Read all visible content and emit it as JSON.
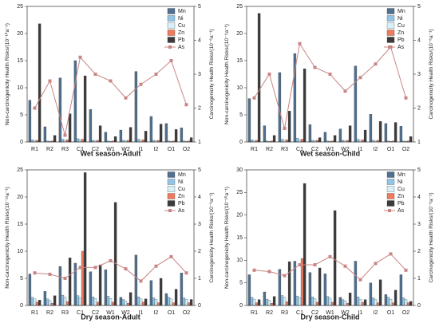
{
  "chart_data": [
    {
      "type": "bar",
      "title": "Wet season-Adult",
      "y_label": "Non-carcinogenicity Health Risks/(10⁻¹⁰a⁻¹)",
      "y2_label": "Carcinogenicity Health Risks/(10⁻⁶a⁻¹)",
      "categories": [
        "R1",
        "R2",
        "R3",
        "C1",
        "C2",
        "W1",
        "W2",
        "I1",
        "I2",
        "O1",
        "O2"
      ],
      "ylim": [
        0,
        25
      ],
      "yticks": [
        0,
        5,
        10,
        15,
        20,
        25
      ],
      "y2lim": [
        1,
        5
      ],
      "y2ticks": [
        1,
        2,
        3,
        4,
        5
      ],
      "series": [
        {
          "name": "Mn",
          "color": "#4f7091",
          "values": [
            7.7,
            2.8,
            11.8,
            15,
            6,
            1.8,
            2.2,
            13,
            4.7,
            3.4,
            2.6
          ]
        },
        {
          "name": "Ni",
          "color": "#92c6e6",
          "values": [
            0.4,
            0.2,
            0.5,
            0.6,
            0.3,
            0.2,
            0.3,
            0.5,
            0.3,
            0.2,
            0.2
          ]
        },
        {
          "name": "Cu",
          "color": "#d8f0f8",
          "values": [
            0.2,
            0.1,
            0.3,
            0.4,
            0.2,
            0.1,
            0.2,
            0.3,
            0.2,
            0.1,
            0.1
          ]
        },
        {
          "name": "Zn",
          "color": "#ef7b5f",
          "values": [
            0.3,
            0.2,
            0.4,
            0.5,
            0.3,
            0.2,
            0.3,
            0.4,
            0.3,
            0.2,
            0.2
          ]
        },
        {
          "name": "Pb",
          "color": "#3b3b3b",
          "values": [
            21.8,
            1.2,
            5.2,
            12.2,
            3,
            1,
            2.7,
            2,
            3.3,
            2.3,
            0.8
          ]
        },
        {
          "name": "As",
          "color": "#c98585",
          "axis": "y2",
          "values": [
            2.0,
            2.8,
            1.2,
            3.5,
            3.0,
            2.8,
            2.3,
            2.7,
            3.0,
            3.4,
            2.1
          ]
        }
      ]
    },
    {
      "type": "bar",
      "title": "Wet season-Child",
      "y_label": "Non-carcinogenicity Health Risks/(10⁻⁹a⁻¹)",
      "y2_label": "Carcinogenicity Health Risks/(10⁻⁶a⁻¹)",
      "categories": [
        "R1",
        "R2",
        "R3",
        "C1",
        "C2",
        "W1",
        "W2",
        "I1",
        "I2",
        "O1",
        "O2"
      ],
      "ylim": [
        0,
        25
      ],
      "yticks": [
        0,
        5,
        10,
        15,
        20,
        25
      ],
      "y2lim": [
        1,
        5
      ],
      "y2ticks": [
        1,
        2,
        3,
        4,
        5
      ],
      "series": [
        {
          "name": "Mn",
          "color": "#4f7091",
          "values": [
            8,
            3,
            12.8,
            16.3,
            3.2,
            1.8,
            2.4,
            14,
            5.1,
            3.4,
            2.9
          ]
        },
        {
          "name": "Ni",
          "color": "#92c6e6",
          "values": [
            0.4,
            0.2,
            0.5,
            0.7,
            0.3,
            0.2,
            0.3,
            0.5,
            0.3,
            0.2,
            0.2
          ]
        },
        {
          "name": "Cu",
          "color": "#d8f0f8",
          "values": [
            0.2,
            0.1,
            0.3,
            0.4,
            0.2,
            0.1,
            0.2,
            0.3,
            0.2,
            0.1,
            0.1
          ]
        },
        {
          "name": "Zn",
          "color": "#ef7b5f",
          "values": [
            0.3,
            0.2,
            0.4,
            0.5,
            0.3,
            0.2,
            0.3,
            0.4,
            0.3,
            0.2,
            0.2
          ]
        },
        {
          "name": "Pb",
          "color": "#3b3b3b",
          "values": [
            23.7,
            1.2,
            5.7,
            13.5,
            0.8,
            1.2,
            3,
            2.2,
            3.8,
            3.6,
            1
          ]
        },
        {
          "name": "As",
          "color": "#c98585",
          "axis": "y2",
          "values": [
            2.3,
            3.0,
            1.4,
            3.9,
            3.2,
            3.0,
            2.5,
            2.9,
            3.3,
            3.8,
            2.3
          ]
        }
      ]
    },
    {
      "type": "bar",
      "title": "Dry season-Adult",
      "y_label": "Non-carcinogenicity Health Risks/(10⁻¹¹a⁻¹)",
      "y2_label": "Carcinogenicity Health Risks/(10⁻⁶a⁻¹)",
      "categories": [
        "R1",
        "R2",
        "R3",
        "C1",
        "C2",
        "W1",
        "W2",
        "I1",
        "I2",
        "O1",
        "O2"
      ],
      "ylim": [
        0,
        25
      ],
      "yticks": [
        0,
        5,
        10,
        15,
        20,
        25
      ],
      "y2lim": [
        0,
        5
      ],
      "y2ticks": [
        0,
        1,
        2,
        3,
        4,
        5
      ],
      "series": [
        {
          "name": "Mn",
          "color": "#4f7091",
          "values": [
            5.8,
            2.6,
            7.2,
            7.8,
            6.2,
            6.6,
            1.5,
            9.3,
            4.6,
            2.2,
            6
          ]
        },
        {
          "name": "Ni",
          "color": "#92c6e6",
          "values": [
            1.5,
            1.2,
            1.9,
            1.8,
            1.6,
            1.7,
            1.1,
            1.6,
            1.4,
            1.5,
            1.4
          ]
        },
        {
          "name": "Cu",
          "color": "#d8f0f8",
          "values": [
            1.2,
            0.9,
            1.5,
            1.4,
            1.3,
            1.3,
            0.8,
            1.2,
            1.1,
            1.2,
            1.1
          ]
        },
        {
          "name": "Zn",
          "color": "#ef7b5f",
          "values": [
            0.6,
            0.4,
            0.7,
            10,
            0.6,
            0.6,
            0.4,
            0.6,
            0.5,
            0.5,
            0.5
          ]
        },
        {
          "name": "Pb",
          "color": "#3b3b3b",
          "values": [
            1,
            1.8,
            8.8,
            24.5,
            7.5,
            19,
            2.4,
            1.2,
            5,
            3,
            1.1
          ]
        },
        {
          "name": "As",
          "color": "#c98585",
          "axis": "y2",
          "values": [
            1.2,
            1.15,
            1.0,
            1.4,
            1.4,
            1.65,
            1.35,
            0.9,
            1.45,
            1.8,
            1.2
          ]
        }
      ]
    },
    {
      "type": "bar",
      "title": "Dry season-Child",
      "y_label": "Non-carcinogenicity Health Risks/(10⁻¹⁰a⁻¹)",
      "y2_label": "Carcinogenicity Health Risks/(10⁻⁶a⁻¹)",
      "categories": [
        "R1",
        "R2",
        "R3",
        "C1",
        "C2",
        "W1",
        "W2",
        "I1",
        "I2",
        "O1",
        "O2"
      ],
      "ylim": [
        0,
        30
      ],
      "yticks": [
        0,
        5,
        10,
        15,
        20,
        25,
        30
      ],
      "y2lim": [
        0,
        5
      ],
      "y2ticks": [
        0,
        1,
        2,
        3,
        4,
        5
      ],
      "series": [
        {
          "name": "Mn",
          "color": "#4f7091",
          "values": [
            6.8,
            3,
            8,
            9.8,
            7.3,
            7,
            1.8,
            9.8,
            5,
            2.4,
            6.8
          ]
        },
        {
          "name": "Ni",
          "color": "#92c6e6",
          "values": [
            1.8,
            1.4,
            2.2,
            2.1,
            1.9,
            2,
            1.3,
            1.9,
            1.7,
            1.8,
            1.7
          ]
        },
        {
          "name": "Cu",
          "color": "#d8f0f8",
          "values": [
            1.4,
            1.1,
            1.8,
            1.7,
            1.5,
            1.6,
            1,
            1.4,
            1.3,
            1.4,
            1.3
          ]
        },
        {
          "name": "Zn",
          "color": "#ef7b5f",
          "values": [
            0.6,
            0.5,
            0.8,
            10.4,
            0.7,
            0.7,
            0.5,
            0.7,
            0.6,
            0.6,
            0.6
          ]
        },
        {
          "name": "Pb",
          "color": "#3b3b3b",
          "values": [
            1.3,
            2,
            9.7,
            27,
            8.3,
            21,
            2.8,
            1.3,
            5.7,
            3.4,
            0.9
          ]
        },
        {
          "name": "As",
          "color": "#c98585",
          "axis": "y2",
          "values": [
            1.3,
            1.25,
            1.1,
            1.5,
            1.5,
            1.8,
            1.45,
            0.95,
            1.55,
            1.9,
            1.3
          ]
        }
      ]
    }
  ]
}
